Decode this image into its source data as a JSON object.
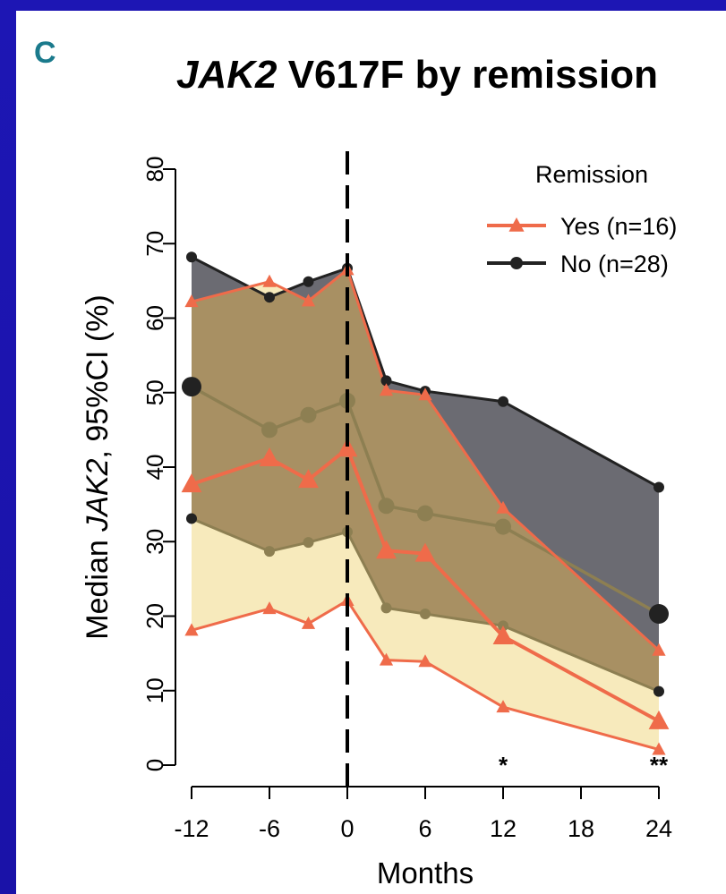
{
  "panel_letter": "C",
  "title_italic": "JAK2",
  "title_rest": " V617F by remission",
  "colors": {
    "slide_background": "#1a12a8",
    "panel_letter": "#1a7a8c",
    "yes_series": "#ef6b4a",
    "no_series": "#222222",
    "no_ci_fill": "#6b6b72",
    "yes_ci_fill": "#f7eabc",
    "overlap_fill": "#a89063",
    "overlap_line": "#8d7f52"
  },
  "chart_data": {
    "type": "line",
    "xlabel": "Months",
    "ylabel_prefix": "Median ",
    "ylabel_italic": "JAK2",
    "ylabel_suffix": ", 95%CI (%)",
    "x_ticks": [
      -12,
      -6,
      0,
      6,
      12,
      18,
      24
    ],
    "y_ticks": [
      0,
      10,
      20,
      30,
      40,
      50,
      60,
      70,
      80
    ],
    "xlim": [
      -12,
      24
    ],
    "ylim": [
      0,
      80
    ],
    "vline_x": 0,
    "legend": {
      "title": "Remission",
      "placement": "top-right",
      "entries": [
        "Yes (n=16)",
        "No (n=28)"
      ]
    },
    "significance": [
      {
        "x": 12,
        "label": "*"
      },
      {
        "x": 24,
        "label": "**"
      }
    ],
    "series": [
      {
        "name": "No (n=28)",
        "marker": "circle",
        "x": [
          -12,
          -6,
          -3,
          0,
          3,
          6,
          12,
          24
        ],
        "median": [
          50.8,
          45,
          47,
          48.9,
          34.8,
          33.8,
          32,
          20.3
        ],
        "upper": [
          68.2,
          62.8,
          64.9,
          66.7,
          51.6,
          50.2,
          48.8,
          37.3
        ],
        "lower": [
          33.1,
          28.7,
          29.9,
          31.3,
          21.1,
          20.3,
          18.7,
          9.9
        ]
      },
      {
        "name": "Yes (n=16)",
        "marker": "triangle",
        "x": [
          -12,
          -6,
          -3,
          0,
          3,
          6,
          12,
          24
        ],
        "median": [
          37.7,
          41.2,
          38.3,
          42.5,
          28.8,
          28.4,
          17.3,
          5.9
        ],
        "upper": [
          62.2,
          64.9,
          62.3,
          66.5,
          50.3,
          49.7,
          34.5,
          15.4
        ],
        "lower": [
          18.1,
          21,
          19,
          22.1,
          14.1,
          13.9,
          7.8,
          2.1
        ]
      }
    ]
  }
}
